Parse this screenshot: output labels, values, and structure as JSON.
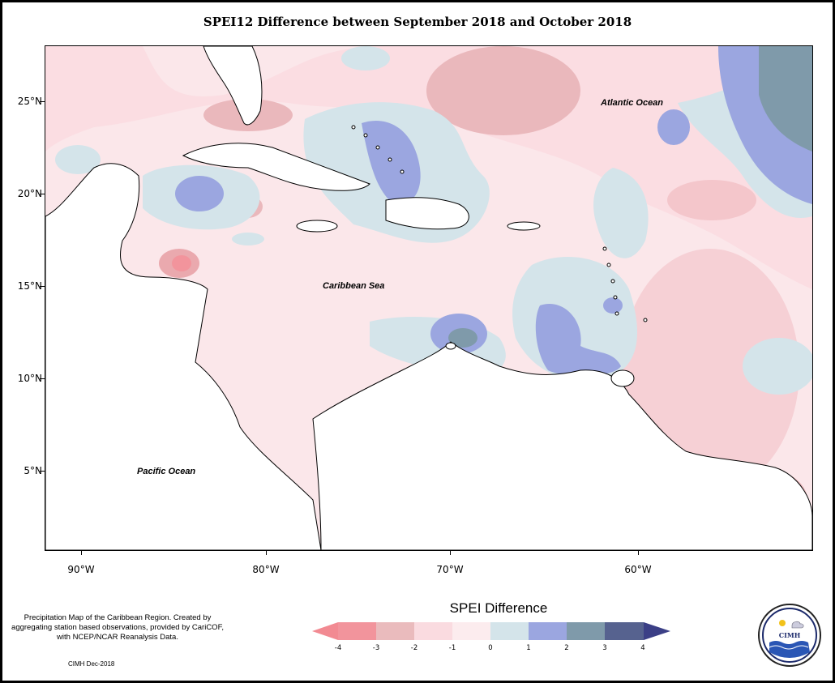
{
  "title": "SPEI12 Difference between September 2018 and October 2018",
  "map": {
    "ocean_labels": {
      "atlantic": "Atlantic Ocean",
      "caribbean": "Caribbean Sea",
      "pacific": "Pacific Ocean"
    },
    "lat_labels": [
      "25°N",
      "20°N",
      "15°N",
      "10°N",
      "5°N"
    ],
    "lon_labels": [
      "90°W",
      "80°W",
      "70°W",
      "60°W"
    ]
  },
  "legend": {
    "title": "SPEI Difference",
    "tick_labels": [
      "-4",
      "-3",
      "-2",
      "-1",
      "0",
      "1",
      "2",
      "3",
      "4"
    ],
    "colors": [
      "#f2949c",
      "#eabbbd",
      "#fadbe0",
      "#fcecee",
      "#d4e4ea",
      "#9ba6e0",
      "#7f9aaa",
      "#56628f"
    ],
    "colors_extend": {
      "low": "#f28a92",
      "high": "#3b3f86"
    }
  },
  "footer": {
    "note": "Precipitation Map of the Caribbean Region. Created by aggregating station based observations, provided by CariCOF, with NCEP/NCAR Reanalysis Data.",
    "credit": "CIMH Dec-2018"
  },
  "logo": {
    "text": "CIMH"
  }
}
